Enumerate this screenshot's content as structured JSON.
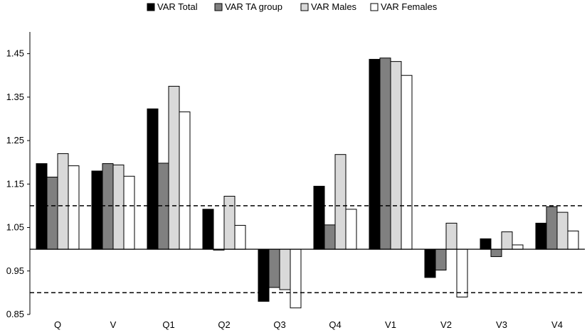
{
  "chart_data": {
    "type": "bar",
    "title": "",
    "xlabel": "",
    "ylabel": "",
    "categories": [
      "Q",
      "V",
      "Q1",
      "Q2",
      "Q3",
      "Q4",
      "V1",
      "V2",
      "V3",
      "V4"
    ],
    "series": [
      {
        "name": "VAR Total",
        "color": "#000000",
        "values": [
          1.197,
          1.18,
          1.323,
          1.092,
          0.88,
          1.145,
          1.437,
          0.935,
          1.024,
          1.06
        ]
      },
      {
        "name": "VAR TA group",
        "color": "#808080",
        "values": [
          1.166,
          1.197,
          1.198,
          0.998,
          0.912,
          1.056,
          1.44,
          0.952,
          0.983,
          1.098
        ]
      },
      {
        "name": "VAR Males",
        "color": "#d9d9d9",
        "values": [
          1.22,
          1.194,
          1.375,
          1.122,
          0.907,
          1.218,
          1.432,
          1.06,
          1.04,
          1.085
        ]
      },
      {
        "name": "VAR Females",
        "color": "#ffffff",
        "values": [
          1.192,
          1.168,
          1.316,
          1.055,
          0.865,
          1.092,
          1.4,
          0.89,
          1.01,
          1.042
        ]
      }
    ],
    "baseline": 1.0,
    "reference_lines": [
      1.1,
      0.9
    ],
    "ylim": [
      0.85,
      1.5
    ],
    "yticks": [
      0.85,
      0.95,
      1.05,
      1.15,
      1.25,
      1.35,
      1.45
    ],
    "ytick_labels": [
      "0.85",
      "0.95",
      "1.05",
      "1.15",
      "1.25",
      "1.35",
      "1.45"
    ],
    "grid": false,
    "legend_position": "top-center"
  }
}
